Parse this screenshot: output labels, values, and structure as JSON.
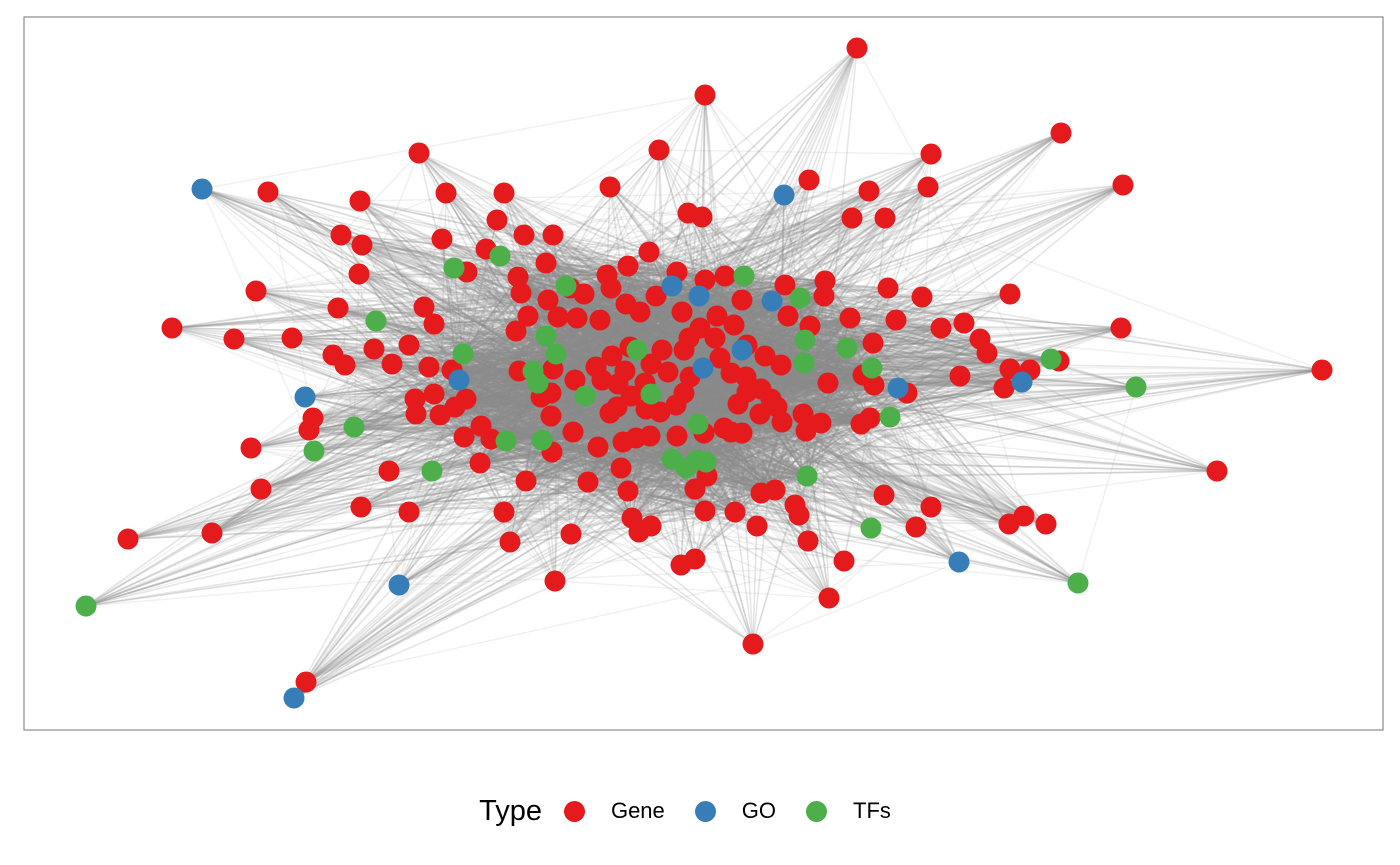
{
  "legend": {
    "title": "Type",
    "items": [
      {
        "label": "Gene",
        "color": "#E41A1C"
      },
      {
        "label": "GO",
        "color": "#377EB8"
      },
      {
        "label": "TFs",
        "color": "#4DAF4A"
      }
    ]
  },
  "edge_color": "#8c8c8c",
  "panel_border_color": "#8a8a8a"
}
